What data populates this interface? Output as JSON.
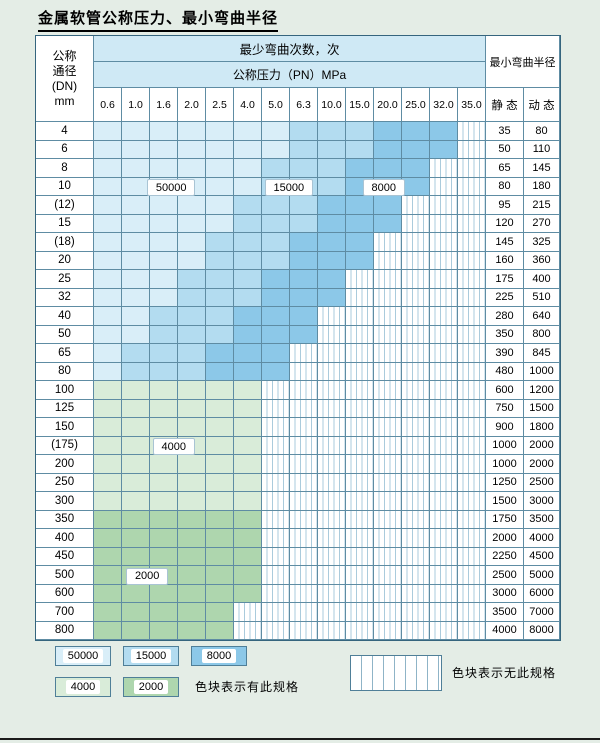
{
  "title": "金属软管公称压力、最小弯曲半径",
  "colors": {
    "c50000": "#d9eef8",
    "c15000": "#b3dcf0",
    "c8000": "#8cc8e8",
    "c4000": "#d9ecd9",
    "c2000": "#aed6ae",
    "grid": "#5e8ca3",
    "header_bg": "#cfe9f5",
    "page_bg": "#e4ede6",
    "hatch_line": "#aacbdc"
  },
  "table": {
    "header": {
      "dn_lines": [
        "公称",
        "通径",
        "(DN)",
        "mm"
      ],
      "cycles_label": "最少弯曲次数，次",
      "pressure_label": "公称压力（PN）MPa",
      "pressures": [
        "0.6",
        "1.0",
        "1.6",
        "2.0",
        "2.5",
        "4.0",
        "5.0",
        "6.3",
        "10.0",
        "15.0",
        "20.0",
        "25.0",
        "32.0",
        "35.0"
      ],
      "radius_label": "最小弯曲半径",
      "static_label": "静 态",
      "dynamic_label": "动 态"
    },
    "labels": [
      {
        "text": "50000",
        "row": 3,
        "col": 1.9
      },
      {
        "text": "15000",
        "row": 3,
        "col": 6.1
      },
      {
        "text": "8000",
        "row": 3,
        "col": 9.6
      },
      {
        "text": "4000",
        "row": 17,
        "col": 2.1
      },
      {
        "text": "2000",
        "row": 24,
        "col": 1.15
      }
    ]
  },
  "legend": {
    "row1": [
      {
        "text": "50000",
        "band": "A"
      },
      {
        "text": "15000",
        "band": "B"
      },
      {
        "text": "8000",
        "band": "C"
      }
    ],
    "row2": [
      {
        "text": "4000",
        "band": "D"
      },
      {
        "text": "2000",
        "band": "E"
      }
    ],
    "has_spec_label": "色块表示有此规格",
    "no_spec_label": "色块表示无此规格"
  },
  "chart_data": {
    "type": "table",
    "title": "金属软管公称压力、最小弯曲半径",
    "row_header": "公称通径 (DN) mm",
    "col_group_cycles": "最少弯曲次数，次 — 公称压力（PN）MPa",
    "col_group_radius": "最小弯曲半径（静态 / 动态）",
    "pressures_MPa": [
      0.6,
      1.0,
      1.6,
      2.0,
      2.5,
      4.0,
      5.0,
      6.3,
      10.0,
      15.0,
      20.0,
      25.0,
      32.0,
      35.0
    ],
    "cycle_bands": {
      "A": 50000,
      "B": 15000,
      "C": 8000,
      "D": 4000,
      "E": 2000,
      "X": null
    },
    "dn": [
      "4",
      "6",
      "8",
      "10",
      "(12)",
      "15",
      "(18)",
      "20",
      "25",
      "32",
      "40",
      "50",
      "65",
      "80",
      "100",
      "125",
      "150",
      "(175)",
      "200",
      "250",
      "300",
      "350",
      "400",
      "450",
      "500",
      "600",
      "700",
      "800"
    ],
    "cycles_matrix": [
      "AAAAAAABBBCCCX",
      "AAAAAAABBBCCCX",
      "AAAAAABBBCCCXX",
      "AAAAAABBBCCCXX",
      "AAAAABBBCCCXXX",
      "AAAAABBBCCCXXX",
      "AAAABBBCCCXXXX",
      "AAAABBBCCCXXXX",
      "AAABBBCCCXXXXX",
      "AAABBBCCCXXXXX",
      "AABBBCCCXXXXXX",
      "AABBBCCCXXXXXX",
      "ABBBCCCXXXXXXX",
      "ABBBCCCXXXXXXX",
      "DDDDDDXXXXXXXX",
      "DDDDDDXXXXXXXX",
      "DDDDDDXXXXXXXX",
      "DDDDDDXXXXXXXX",
      "DDDDDDXXXXXXXX",
      "DDDDDDXXXXXXXX",
      "DDDDDDXXXXXXXX",
      "EEEEEEXXXXXXXX",
      "EEEEEEXXXXXXXX",
      "EEEEEEXXXXXXXX",
      "EEEEEEXXXXXXXX",
      "EEEEEEXXXXXXXX",
      "EEEEEXXXXXXXXX",
      "EEEEEXXXXXXXXX"
    ],
    "radius_static": [
      35,
      50,
      65,
      80,
      95,
      120,
      145,
      160,
      175,
      225,
      280,
      350,
      390,
      480,
      600,
      750,
      900,
      1000,
      1000,
      1250,
      1500,
      1750,
      2000,
      2250,
      2500,
      3000,
      3500,
      4000
    ],
    "radius_dynamic": [
      80,
      110,
      145,
      180,
      215,
      270,
      325,
      360,
      400,
      510,
      640,
      800,
      845,
      1000,
      1200,
      1500,
      1800,
      2000,
      2000,
      2500,
      3000,
      3500,
      4000,
      4500,
      5000,
      6000,
      7000,
      8000
    ]
  }
}
